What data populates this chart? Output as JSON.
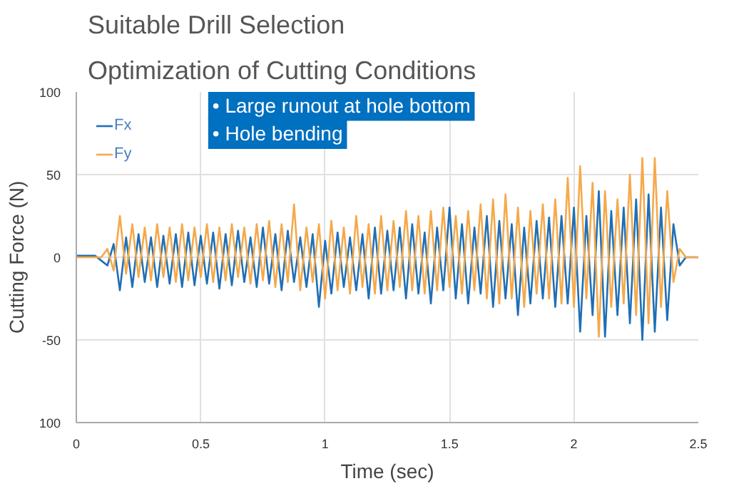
{
  "chart_data": {
    "type": "line",
    "title": "Suitable Drill Selection",
    "subtitle": "Optimization of Cutting Conditions",
    "xlabel": "Time (sec)",
    "ylabel": "Cutting Force (N)",
    "annotations": [
      "• Large runout at hole bottom",
      "• Hole bending"
    ],
    "x": [
      0,
      0.025,
      0.05,
      0.075,
      0.1,
      0.125,
      0.15,
      0.175,
      0.2,
      0.225,
      0.25,
      0.275,
      0.3,
      0.325,
      0.35,
      0.375,
      0.4,
      0.425,
      0.45,
      0.475,
      0.5,
      0.525,
      0.55,
      0.575,
      0.6,
      0.625,
      0.65,
      0.675,
      0.7,
      0.725,
      0.75,
      0.775,
      0.8,
      0.825,
      0.85,
      0.875,
      0.9,
      0.925,
      0.95,
      0.975,
      1.0,
      1.025,
      1.05,
      1.075,
      1.1,
      1.125,
      1.15,
      1.175,
      1.2,
      1.225,
      1.25,
      1.275,
      1.3,
      1.325,
      1.35,
      1.375,
      1.4,
      1.425,
      1.45,
      1.475,
      1.5,
      1.525,
      1.55,
      1.575,
      1.6,
      1.625,
      1.65,
      1.675,
      1.7,
      1.725,
      1.75,
      1.775,
      1.8,
      1.825,
      1.85,
      1.875,
      1.9,
      1.925,
      1.95,
      1.975,
      2.0,
      2.025,
      2.05,
      2.075,
      2.1,
      2.125,
      2.15,
      2.175,
      2.2,
      2.225,
      2.25,
      2.275,
      2.3,
      2.325,
      2.35,
      2.375,
      2.4,
      2.425,
      2.45,
      2.475,
      2.5
    ],
    "series": [
      {
        "name": "Fx",
        "color": "#1f6fb5",
        "values": [
          1,
          1,
          1,
          1,
          -2,
          -5,
          8,
          -20,
          12,
          -18,
          14,
          -15,
          12,
          -18,
          13,
          -16,
          14,
          -18,
          15,
          -17,
          13,
          -16,
          15,
          -19,
          14,
          -17,
          16,
          -15,
          12,
          -18,
          18,
          -16,
          14,
          -20,
          16,
          -15,
          12,
          -18,
          14,
          -30,
          10,
          -22,
          15,
          -18,
          12,
          -20,
          14,
          -25,
          18,
          -22,
          16,
          -20,
          18,
          -25,
          20,
          -22,
          15,
          -28,
          18,
          -20,
          30,
          -25,
          20,
          -28,
          18,
          -22,
          25,
          -30,
          22,
          -25,
          20,
          -35,
          18,
          -28,
          22,
          -25,
          24,
          -30,
          25,
          -28,
          30,
          -45,
          25,
          -35,
          40,
          -48,
          28,
          -35,
          30,
          -40,
          35,
          -50,
          38,
          -45,
          30,
          -38,
          20,
          -5,
          0,
          0,
          0
        ]
      },
      {
        "name": "Fy",
        "color": "#f5a94a",
        "values": [
          0,
          0,
          0,
          0,
          0,
          5,
          -8,
          25,
          -10,
          20,
          -12,
          18,
          -14,
          20,
          -12,
          18,
          -15,
          20,
          -14,
          18,
          -12,
          20,
          -15,
          18,
          -14,
          20,
          -12,
          18,
          -16,
          20,
          -14,
          22,
          -18,
          20,
          -15,
          32,
          -20,
          18,
          -15,
          20,
          -25,
          22,
          -20,
          18,
          -22,
          25,
          -18,
          20,
          -22,
          25,
          -20,
          22,
          -18,
          28,
          -20,
          25,
          -22,
          28,
          -20,
          30,
          -18,
          25,
          -22,
          28,
          -20,
          32,
          -25,
          35,
          -28,
          38,
          -25,
          30,
          -30,
          28,
          -22,
          32,
          -25,
          35,
          -28,
          48,
          -30,
          55,
          -25,
          45,
          -48,
          40,
          -30,
          35,
          -28,
          50,
          -35,
          60,
          -40,
          60,
          -30,
          40,
          -15,
          5,
          0,
          0,
          0
        ]
      }
    ],
    "xlim": [
      0,
      2.5
    ],
    "ylim": [
      -100,
      100
    ],
    "xticks": [
      0,
      0.5,
      1,
      1.5,
      2,
      2.5
    ],
    "yticks": [
      {
        "value": -100,
        "label": "100"
      },
      -50,
      0,
      50,
      100
    ],
    "grid": true,
    "legend": "top left"
  }
}
